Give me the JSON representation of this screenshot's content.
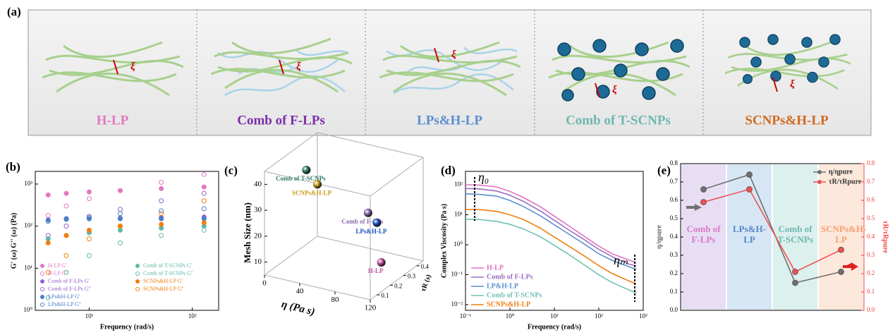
{
  "diagram": {
    "label": "(a)",
    "panels": [
      {
        "label": "H-LP",
        "color": "#e377c2",
        "symbol": "ξ"
      },
      {
        "label": "Comb of F-LPs",
        "color": "#7b2fa8",
        "symbol": "ξ"
      },
      {
        "label": "LPs&H-LP",
        "color": "#5b8fd0",
        "symbol": "ξ"
      },
      {
        "label": "Comb of T-SCNPs",
        "color": "#6fb7ae",
        "symbol": "ξ"
      },
      {
        "label": "SCNPs&H-LP",
        "color": "#d2691e",
        "symbol": "ξ"
      }
    ]
  },
  "chart_data": [
    {
      "panel_label": "(b)",
      "type": "scatter",
      "x_label": "Frequency (rad/s)",
      "y_label": "G' (ω) G'' (ω) (Pa)",
      "x_scale": "log",
      "y_scale": "log",
      "xlim": [
        3,
        180
      ],
      "ylim": [
        1,
        2000
      ],
      "xticks": [
        {
          "value": 10,
          "label": "10¹"
        },
        {
          "value": 100,
          "label": "10²"
        }
      ],
      "yticks": [
        {
          "value": 1,
          "label": "10⁰"
        },
        {
          "value": 10,
          "label": "10¹"
        },
        {
          "value": 100,
          "label": "10²"
        },
        {
          "value": 1000,
          "label": "10³"
        }
      ],
      "x": [
        4,
        6,
        10,
        20,
        50,
        130
      ],
      "legend": "lower left",
      "series": [
        {
          "name": "H-LP G'",
          "color": "#e377c2",
          "filled": true,
          "values": [
            550,
            600,
            650,
            700,
            780,
            850
          ]
        },
        {
          "name": "H-LP G''",
          "color": "#e377c2",
          "filled": false,
          "values": [
            180,
            300,
            450,
            700,
            1100,
            1700
          ]
        },
        {
          "name": "Comb of F-LPs G'",
          "color": "#9a5fd0",
          "filled": true,
          "values": [
            140,
            150,
            150,
            155,
            160,
            165
          ]
        },
        {
          "name": "Comb of F-LPs G''",
          "color": "#9a5fd0",
          "filled": false,
          "values": [
            60,
            100,
            160,
            250,
            400,
            600
          ]
        },
        {
          "name": "LPs&H-LP G'",
          "color": "#4a7fc8",
          "filled": true,
          "values": [
            140,
            145,
            150,
            150,
            150,
            150
          ]
        },
        {
          "name": "LPs&H-LP G''",
          "color": "#4a7fc8",
          "filled": false,
          "values": [
            130,
            150,
            170,
            200,
            230,
            260
          ]
        },
        {
          "name": "Comb of T-SCNPs G'",
          "color": "#5fb8a8",
          "filled": true,
          "values": [
            50,
            60,
            70,
            80,
            90,
            100
          ]
        },
        {
          "name": "Comb of T-SCNPs G''",
          "color": "#5fb8a8",
          "filled": false,
          "values": [
            2,
            8,
            20,
            40,
            60,
            80
          ]
        },
        {
          "name": "SCNPs&H-LP G'",
          "color": "#f07f10",
          "filled": true,
          "values": [
            40,
            60,
            80,
            100,
            110,
            120
          ]
        },
        {
          "name": "SCNPs&H-LP G''",
          "color": "#f07f10",
          "filled": false,
          "values": [
            8,
            20,
            50,
            100,
            200,
            400
          ]
        }
      ]
    },
    {
      "panel_label": "(c)",
      "type": "scatter3d",
      "x_label": "η (Pa s)",
      "y_label": "τR (s)",
      "z_label": "Mesh Size (nm)",
      "xlim": [
        0,
        120
      ],
      "xticks": [
        0,
        40,
        80,
        120
      ],
      "ylim": [
        0.05,
        0.45
      ],
      "yticks": [
        0.1,
        0.2,
        0.3,
        0.4
      ],
      "zlim": [
        5,
        45
      ],
      "zticks": [
        10,
        20,
        30,
        40
      ],
      "points": [
        {
          "name": "Comb of T-SCNPs",
          "color": "#2e7a6a",
          "x": 10,
          "y": 0.3,
          "z": 37
        },
        {
          "name": "SCNPs&H-LP",
          "color": "#c8a020",
          "x": 15,
          "y": 0.35,
          "z": 30
        },
        {
          "name": "Comb of F-LPs",
          "color": "#8a6ab0",
          "x": 80,
          "y": 0.3,
          "z": 26
        },
        {
          "name": "LPs&H-LP",
          "color": "#1a50c0",
          "x": 90,
          "y": 0.3,
          "z": 23
        },
        {
          "name": "H-LP",
          "color": "#c050a0",
          "x": 110,
          "y": 0.2,
          "z": 13
        }
      ]
    },
    {
      "panel_label": "(d)",
      "type": "line",
      "x_label": "Frequency (rad/s)",
      "y_label": "Complex Viscosity (Pa s)",
      "x_scale": "log",
      "y_scale": "log",
      "xlim": [
        0.1,
        1000
      ],
      "ylim": [
        0.0065,
        280
      ],
      "xticks": [
        {
          "value": 0.1,
          "label": "10⁻¹"
        },
        {
          "value": 1,
          "label": "10⁰"
        },
        {
          "value": 10,
          "label": "10¹"
        },
        {
          "value": 100,
          "label": "10²"
        },
        {
          "value": 1000,
          "label": "10³"
        }
      ],
      "yticks": [
        {
          "value": 0.01,
          "label": "10⁻²"
        },
        {
          "value": 0.1,
          "label": "10⁻¹"
        },
        {
          "value": 1,
          "label": "10⁰"
        },
        {
          "value": 10,
          "label": "10¹"
        },
        {
          "value": 100,
          "label": "10²"
        }
      ],
      "x": [
        0.1,
        0.2,
        0.5,
        1,
        2,
        5,
        10,
        20,
        50,
        100,
        200,
        500,
        700
      ],
      "legend": "lower left",
      "annotations": [
        "η₀",
        "ηₘ"
      ],
      "series": [
        {
          "name": "H-LP",
          "color": "#e070c0",
          "values": [
            100,
            98,
            85,
            60,
            38,
            18,
            9,
            4.5,
            1.8,
            0.9,
            0.5,
            0.3,
            0.25
          ]
        },
        {
          "name": "Comb of F-LPs",
          "color": "#9a6fc0",
          "values": [
            75,
            73,
            62,
            45,
            28,
            13,
            6.5,
            3.3,
            1.4,
            0.7,
            0.4,
            0.22,
            0.2
          ]
        },
        {
          "name": "LP&H-LP",
          "color": "#5b8fd0",
          "values": [
            50,
            48,
            42,
            30,
            19,
            9,
            4.6,
            2.4,
            1,
            0.5,
            0.3,
            0.18,
            0.15
          ]
        },
        {
          "name": "Comb of T-SCNPs",
          "color": "#6fc2b4",
          "values": [
            7,
            7,
            6,
            4.8,
            3.4,
            1.8,
            0.95,
            0.5,
            0.2,
            0.1,
            0.055,
            0.03,
            0.025
          ]
        },
        {
          "name": "SCNPs&H-LP",
          "color": "#f07f10",
          "values": [
            15,
            15,
            13,
            10,
            7,
            3.5,
            1.8,
            0.95,
            0.4,
            0.2,
            0.11,
            0.06,
            0.05
          ]
        }
      ]
    },
    {
      "panel_label": "(e)",
      "type": "line",
      "y_label": "η/ηpure",
      "y2_label": "τR/τRpure",
      "y2_color": "#f04040",
      "categories": [
        "Comb of F-LPs",
        "LPs&H-LP",
        "Comb of T-SCNPs",
        "SCNPs&H-LP"
      ],
      "band_colors": [
        "#e8def4",
        "#d6e6f4",
        "#dcf0ee",
        "#fde8dc"
      ],
      "category_colors": [
        "#d878c8",
        "#5a86c8",
        "#6fb7ae",
        "#f4a070"
      ],
      "ylim": [
        0,
        0.8
      ],
      "yticks": [
        {
          "value": 0,
          "label": "0.0"
        },
        0.1,
        0.2,
        0.3,
        0.4,
        0.5,
        0.6,
        0.7,
        0.8
      ],
      "y2lim": [
        0,
        0.8
      ],
      "y2ticks": [
        {
          "value": 0,
          "label": "0.0"
        },
        0.1,
        0.2,
        0.3,
        0.4,
        0.5,
        0.6,
        0.7,
        0.8
      ],
      "legend": "upper right",
      "series": [
        {
          "name": "η/ηpure",
          "color": "#707070",
          "values": [
            0.66,
            0.74,
            0.15,
            0.21
          ]
        },
        {
          "name": "τR/τRpure",
          "color": "#f05050",
          "axis": "y2",
          "values": [
            0.59,
            0.66,
            0.21,
            0.33
          ]
        }
      ]
    }
  ]
}
